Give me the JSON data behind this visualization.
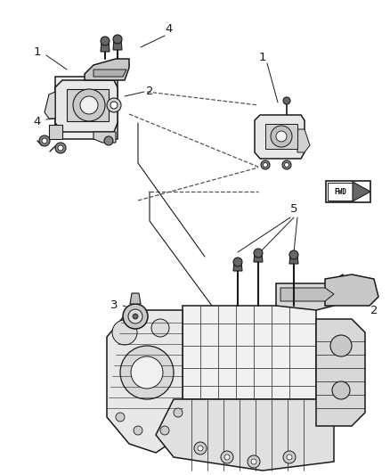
{
  "background_color": "#ffffff",
  "fig_width": 4.38,
  "fig_height": 5.33,
  "dpi": 100,
  "line_color": "#1a1a1a",
  "dash_color": "#555555",
  "gray_light": "#d8d8d8",
  "gray_mid": "#aaaaaa",
  "gray_dark": "#666666"
}
